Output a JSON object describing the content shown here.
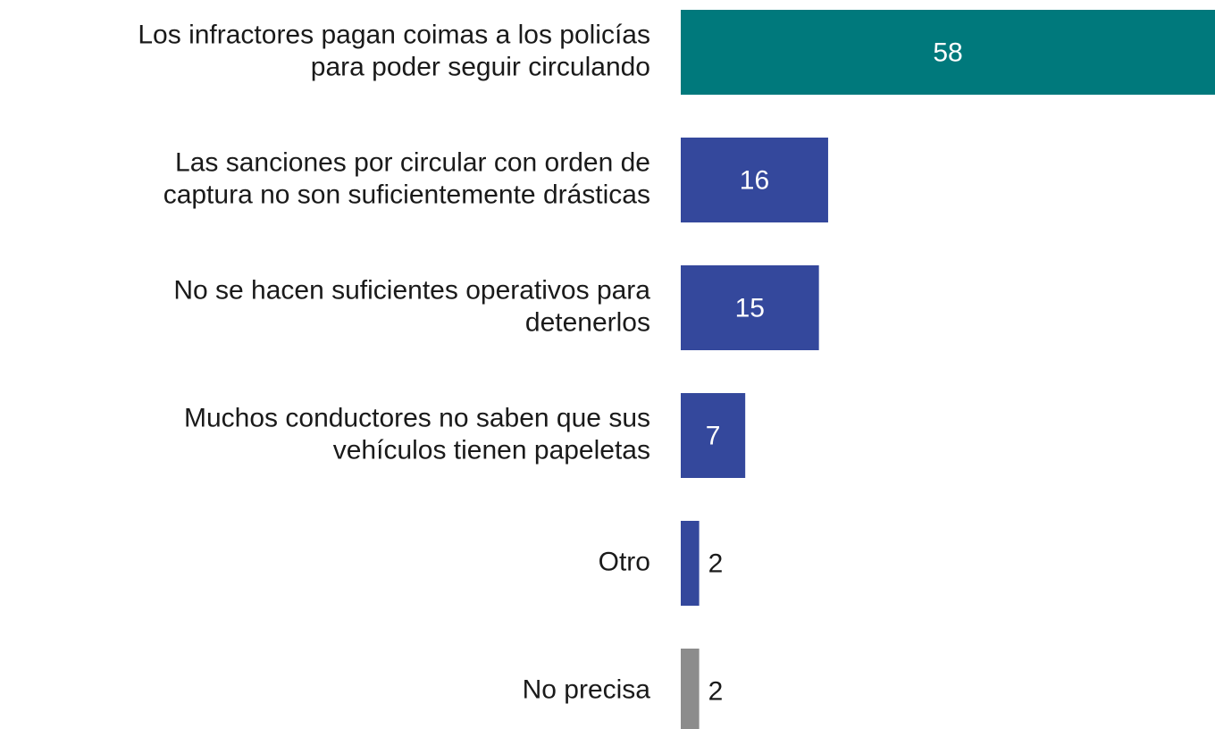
{
  "chart_data": {
    "type": "barh",
    "categories": [
      [
        "Los infractores pagan coimas a los policías",
        "para poder seguir circulando"
      ],
      [
        "Las sanciones por circular con orden de",
        "captura no son suficientemente drásticas"
      ],
      [
        "No se hacen suficientes operativos para",
        "detenerlos"
      ],
      [
        "Muchos conductores no saben que sus",
        "vehículos tienen papeletas"
      ],
      [
        "Otro"
      ],
      [
        "No precisa"
      ]
    ],
    "values": [
      58,
      16,
      15,
      7,
      2,
      2
    ],
    "colors": [
      "#00797c",
      "#34489c",
      "#34489c",
      "#34489c",
      "#34489c",
      "#8c8c8c"
    ],
    "xlim": [
      0,
      58
    ]
  }
}
